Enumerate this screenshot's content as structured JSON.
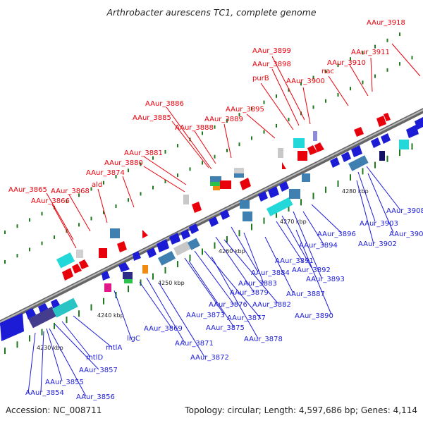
{
  "title": "Arthrobacter aurescens TC1, complete genome",
  "footer": {
    "accession": "Accession: NC_008711",
    "topology": "Topology: circular; Length: 4,597,686 bp; Genes: 4,114"
  },
  "kbp_labels": [
    "4230 kbp",
    "4240 kbp",
    "4250 kbp",
    "4260 kbp",
    "4270 kbp",
    "4280 kbp"
  ],
  "red_labels": [
    "AAur_3918",
    "AAur_3899",
    "AAur_3911",
    "AAur_3898",
    "AAur_3910",
    "nac",
    "purB",
    "AAur_3900",
    "AAur_3895",
    "AAur_3886",
    "AAur_3885",
    "AAur_3889",
    "AAur_3888",
    "AAur_3881",
    "AAur_3880",
    "AAur_3874",
    "ald",
    "AAur_3865",
    "AAur_3868",
    "AAur_3866"
  ],
  "blue_labels": [
    "AAur_3908",
    "AAur_3903",
    "AAur_3904",
    "AAur_3896",
    "AAur_3902",
    "AAur_3894",
    "AAur_3891",
    "AAur_3892",
    "AAur_3884",
    "AAur_3893",
    "AAur_3883",
    "AAur_3879",
    "AAur_3887",
    "AAur_3882",
    "AAur_3876",
    "AAur_3890",
    "AAur_3873",
    "AAur_3877",
    "AAur_3875",
    "AAur_3869",
    "AAur_3878",
    "ligC",
    "AAur_3871",
    "mtlA",
    "AAur_3872",
    "mtlD",
    "AAur_3857",
    "AAur_3855",
    "AAur_3854",
    "AAur_3856"
  ],
  "colors": {
    "red": "#e8000b",
    "blue": "#1c1cd6",
    "track": "#8a8a8a",
    "tick": "#1f7a1f"
  }
}
